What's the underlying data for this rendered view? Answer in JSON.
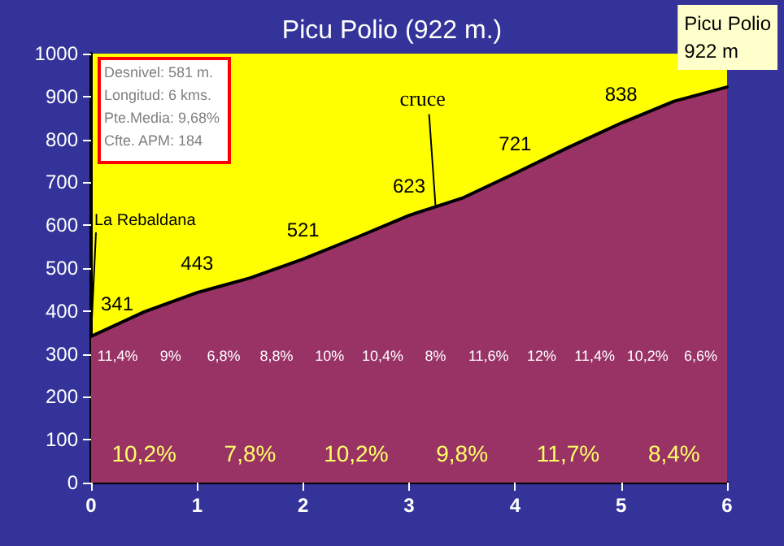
{
  "chart_data": {
    "type": "area",
    "title": "Picu Polio (922 m.)",
    "x": [
      0,
      0.5,
      1,
      1.5,
      2,
      2.5,
      3,
      3.5,
      4,
      4.5,
      5,
      5.5,
      6
    ],
    "series": [
      {
        "color": "#993366",
        "values": [
          341,
          398,
          443,
          477,
          521,
          571,
          623,
          663,
          721,
          781,
          838,
          889,
          922
        ],
        "value_labels": [
          "341",
          null,
          "443",
          null,
          "521",
          null,
          "623",
          null,
          "721",
          null,
          "838",
          null,
          null
        ]
      }
    ],
    "xlim": [
      0,
      6
    ],
    "xticks": [
      0,
      1,
      2,
      3,
      4,
      5,
      6
    ],
    "ylim": [
      0,
      1000
    ],
    "yticks": [
      0,
      100,
      200,
      300,
      400,
      500,
      600,
      700,
      800,
      900,
      1000
    ],
    "grid": false,
    "annotations": [
      "Desnivel: 581 m.",
      "Longitud: 6 kms.",
      "Pte.Media: 9,68%",
      "Cfte. APM: 184",
      "11,4%",
      "9%",
      "6,8%",
      "8,8%",
      "10%",
      "10,4%",
      "8%",
      "11,6%",
      "12%",
      "11,4%",
      "10,2%",
      "6,6%",
      "10,2%",
      "7,8%",
      "10,2%",
      "9,8%",
      "11,7%",
      "8,4%",
      {
        "text": "Picu Polio 922 m",
        "x": 6,
        "y": 922
      },
      {
        "text": "La Rebaldana",
        "x": 0,
        "y": 341
      },
      {
        "text": "cruce",
        "x": 3.25,
        "y": 643
      }
    ]
  }
}
